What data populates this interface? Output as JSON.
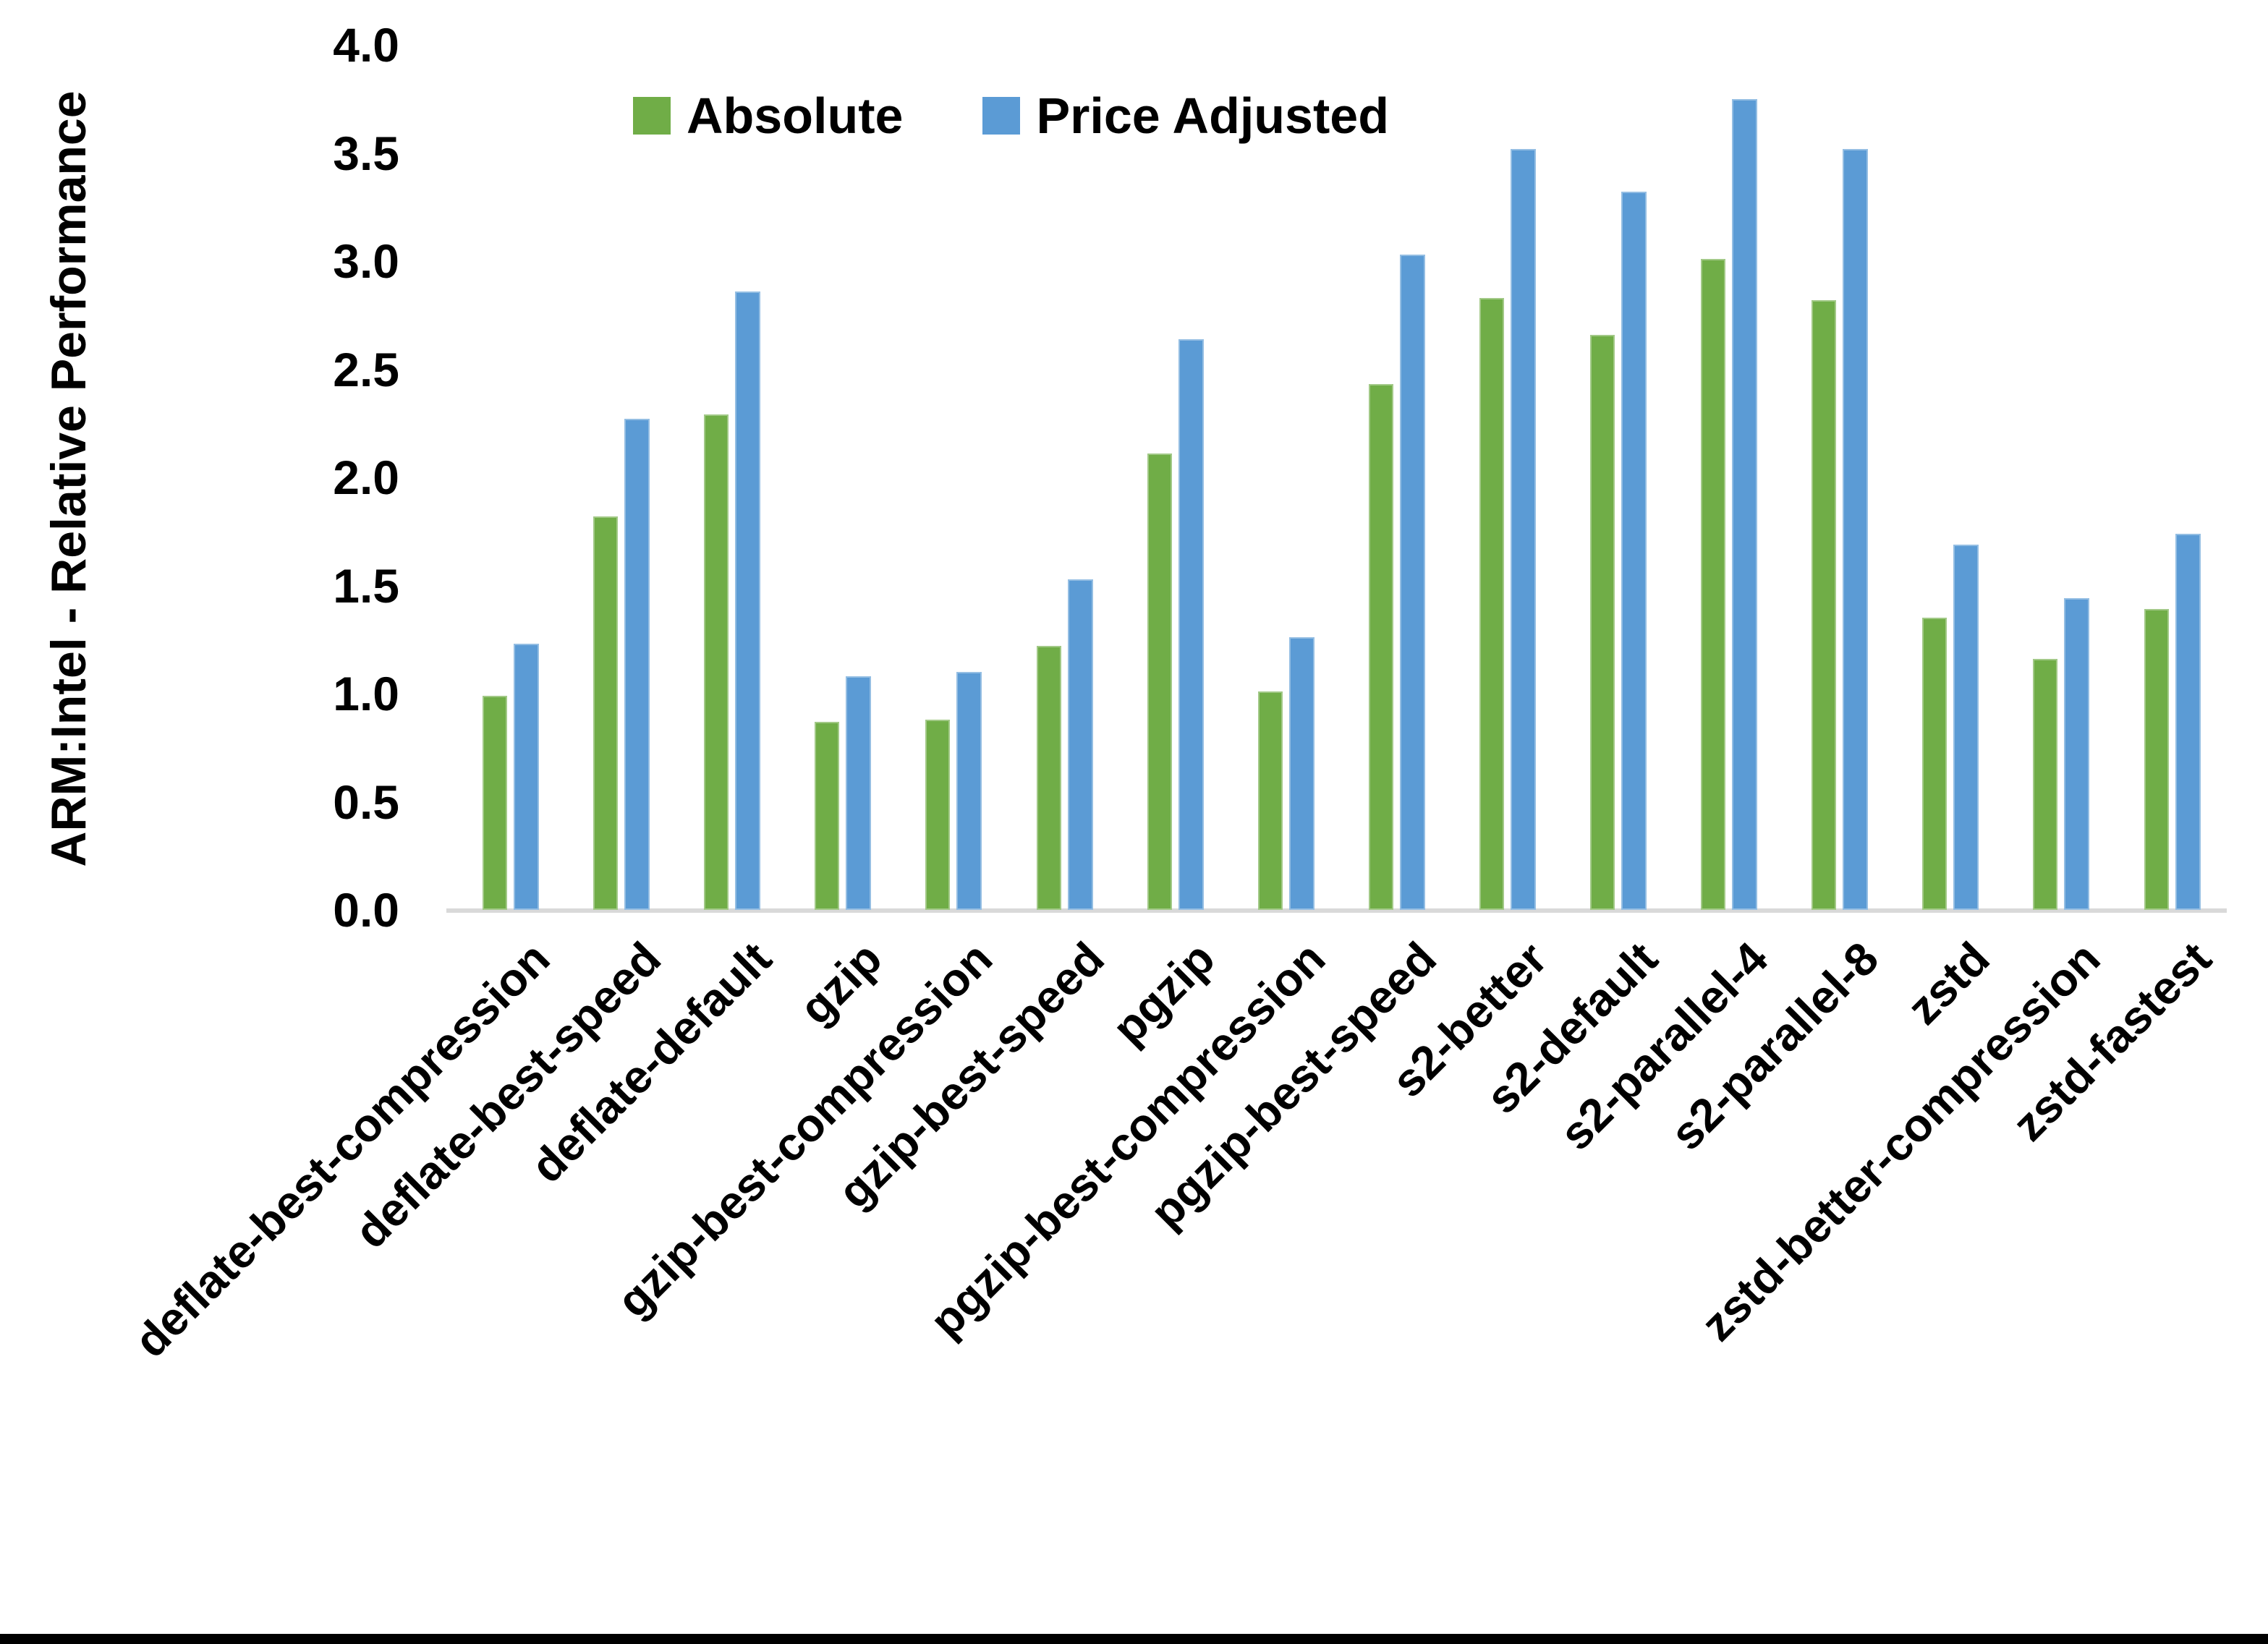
{
  "chart_data": {
    "type": "bar",
    "title": "",
    "ylabel": "ARM:Intel - Relative Performance",
    "xlabel": "",
    "ylim": [
      0.0,
      4.0
    ],
    "ytick_step": 0.5,
    "yticks": [
      "4.0",
      "3.5",
      "3.0",
      "2.5",
      "2.0",
      "1.5",
      "1.0",
      "0.5",
      "0.0"
    ],
    "grid": false,
    "legend_position": "top-center",
    "categories": [
      "deflate-best-compression",
      "deflate-best-speed",
      "deflate-default",
      "gzip",
      "gzip-best-compression",
      "gzip-best-speed",
      "pgzip",
      "pgzip-best-compression",
      "pgzip-best-speed",
      "s2-better",
      "s2-default",
      "s2-parallel-4",
      "s2-parallel-8",
      "zstd",
      "zstd-better-compression",
      "zstd-fastest"
    ],
    "series": [
      {
        "name": "Absolute",
        "color": "#70AD47",
        "values": [
          0.99,
          1.82,
          2.29,
          0.87,
          0.88,
          1.22,
          2.11,
          1.01,
          2.43,
          2.83,
          2.66,
          3.01,
          2.82,
          1.35,
          1.16,
          1.39
        ]
      },
      {
        "name": "Price Adjusted",
        "color": "#5B9BD5",
        "values": [
          1.23,
          2.27,
          2.86,
          1.08,
          1.1,
          1.53,
          2.64,
          1.26,
          3.03,
          3.52,
          3.32,
          3.75,
          3.52,
          1.69,
          1.44,
          1.74
        ]
      }
    ]
  },
  "colors": {
    "background": "#FFFFFF",
    "text": "#000000",
    "axis_line": "#D9D9D9",
    "bottom_border": "#000000"
  }
}
